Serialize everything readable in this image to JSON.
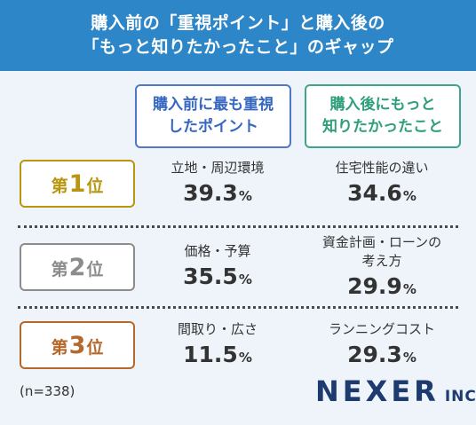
{
  "header": {
    "line1": "購入前の「重視ポイント」と購入後の",
    "line2": "「もっと知りたかったこと」のギャップ"
  },
  "columns": {
    "before": {
      "line1": "購入前に最も重視",
      "line2": "したポイント",
      "color": "#3567c0"
    },
    "after": {
      "line1": "購入後にもっと",
      "line2": "知りたかったこと",
      "color": "#2f9e7c"
    }
  },
  "chart_data": {
    "type": "table",
    "columns": [
      "購入前に最も重視したポイント",
      "購入後にもっと知りたかったこと"
    ],
    "unit": "%",
    "rows": [
      {
        "rank_prefix": "第",
        "rank_num": "1",
        "rank_suffix": "位",
        "rank_color": "#b8960f",
        "before_label1": "立地・周辺環境",
        "before_label2": "",
        "before_value": "39.3",
        "after_label1": "住宅性能の違い",
        "after_label2": "",
        "after_value": "34.6"
      },
      {
        "rank_prefix": "第",
        "rank_num": "2",
        "rank_suffix": "位",
        "rank_color": "#8c8c8c",
        "before_label1": "価格・予算",
        "before_label2": "",
        "before_value": "35.5",
        "after_label1": "資金計画・ローンの",
        "after_label2": "考え方",
        "after_value": "29.9"
      },
      {
        "rank_prefix": "第",
        "rank_num": "3",
        "rank_suffix": "位",
        "rank_color": "#b5682c",
        "before_label1": "間取り・広さ",
        "before_label2": "",
        "before_value": "11.5",
        "after_label1": "ランニングコスト",
        "after_label2": "",
        "after_value": "29.3"
      }
    ]
  },
  "footnote": "(n=338)",
  "logo": {
    "main": "NEXER",
    "sub": "INC."
  }
}
